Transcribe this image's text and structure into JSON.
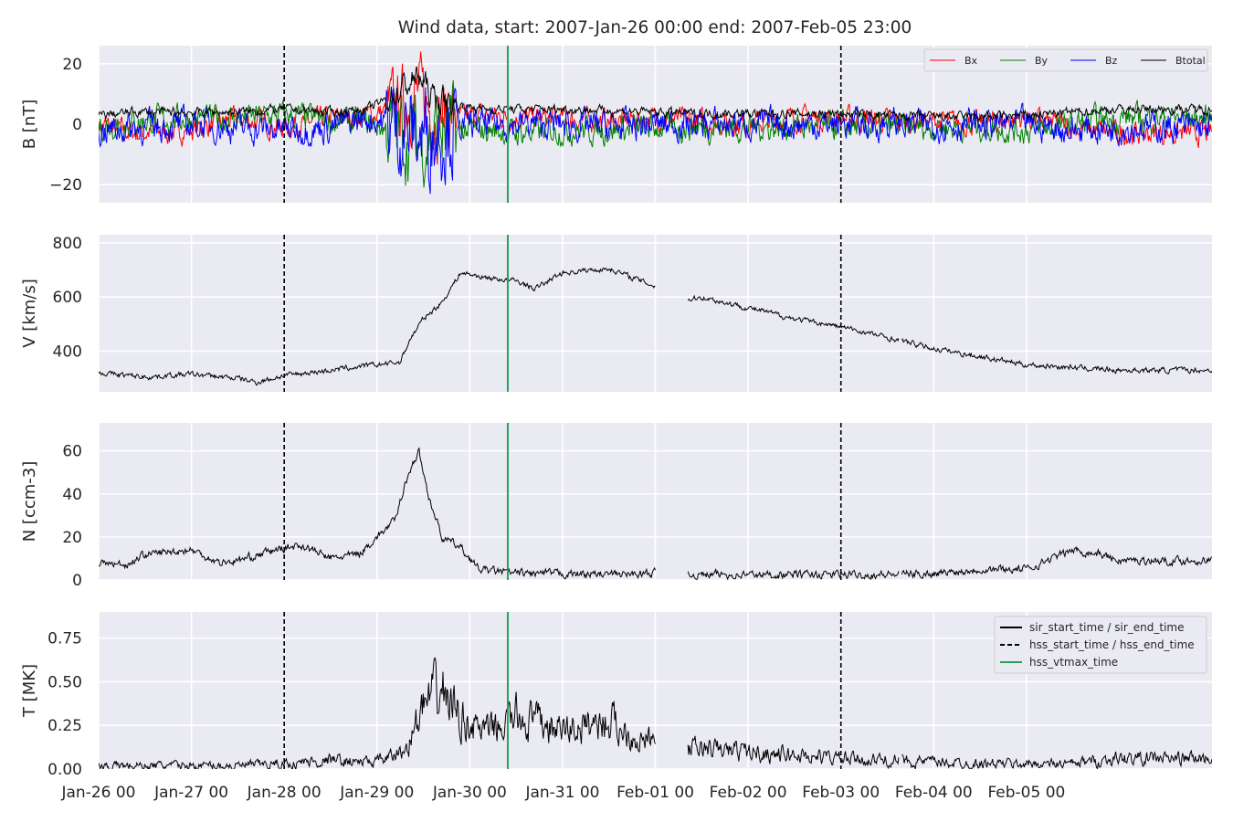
{
  "chart_data": {
    "type": "line",
    "title": "Wind data, start: 2007-Jan-26 00:00  end: 2007-Feb-05 23:00",
    "x_ticks": [
      "Jan-26 00",
      "Jan-27 00",
      "Jan-28 00",
      "Jan-29 00",
      "Jan-30 00",
      "Jan-31 00",
      "Feb-01 00",
      "Feb-02 00",
      "Feb-03 00",
      "Feb-04 00",
      "Feb-05 00"
    ],
    "x_range": [
      "2007-01-26 00:00",
      "2007-02-06 23:59"
    ],
    "events": [
      {
        "label": "hss_start_time / hss_end_time",
        "style": "dashed",
        "color": "#000000",
        "times": [
          "2007-01-28 00:00",
          "2007-02-03 00:00"
        ]
      },
      {
        "label": "hss_vtmax_time",
        "style": "solid",
        "color": "#2ca05a",
        "times": [
          "2007-01-30 09:50"
        ]
      }
    ],
    "event_legend": [
      {
        "label": "sir_start_time / sir_end_time",
        "style": "solid",
        "color": "#000000"
      },
      {
        "label": "hss_start_time / hss_end_time",
        "style": "dashed",
        "color": "#000000"
      },
      {
        "label": "hss_vtmax_time",
        "style": "solid",
        "color": "#2ca05a"
      }
    ],
    "panels": [
      {
        "ylabel": "B [nT]",
        "ylim": [
          -26,
          26
        ],
        "yticks": [
          "20",
          "0",
          "−20"
        ],
        "ytick_values": [
          20,
          0,
          -20
        ],
        "legend_position": "top-right",
        "series": [
          {
            "name": "Bx",
            "color": "#ff0000",
            "days": [
              0,
              0.4,
              1,
              1.5,
              2,
              2.5,
              2.9,
              3.2,
              3.45,
              3.6,
              3.9,
              4.2,
              4.5,
              5,
              5.5,
              6,
              6.5,
              7,
              7.5,
              8,
              8.5,
              9,
              9.5,
              10,
              10.5,
              11
            ],
            "values": [
              0,
              -3,
              -2,
              2,
              -1,
              2,
              3,
              5,
              10,
              4,
              2,
              3,
              2,
              2,
              1,
              2,
              1,
              0,
              2,
              2,
              1,
              1,
              0,
              2,
              -1,
              -3
            ],
            "noise": 3.0
          },
          {
            "name": "By",
            "color": "#008000",
            "days": [
              0,
              0.4,
              1,
              1.5,
              2,
              2.5,
              2.9,
              3.2,
              3.45,
              3.6,
              3.9,
              4.2,
              4.5,
              5,
              5.5,
              6,
              6.5,
              7,
              7.5,
              8,
              8.5,
              9,
              9.5,
              10,
              10.5,
              11
            ],
            "values": [
              -1,
              1,
              2,
              2,
              3,
              1,
              0,
              -2,
              -6,
              -3,
              -2,
              -2,
              -3,
              -2,
              -2,
              -1,
              -1,
              -1,
              -1,
              -1,
              -1,
              -1,
              -1,
              -2,
              0,
              2
            ],
            "noise": 3.5
          },
          {
            "name": "Bz",
            "color": "#0000ff",
            "days": [
              0,
              0.4,
              1,
              1.5,
              2,
              2.5,
              2.9,
              3.2,
              3.45,
              3.6,
              3.9,
              4.2,
              4.5,
              5,
              5.5,
              6,
              6.5,
              7,
              7.5,
              8,
              8.5,
              9,
              9.5,
              10,
              10.5,
              11
            ],
            "values": [
              -2,
              -1,
              0,
              -1,
              -2,
              -1,
              2,
              0,
              -4,
              -2,
              0,
              0,
              0,
              0,
              -1,
              0,
              0,
              0,
              0,
              0,
              0,
              0,
              0,
              0,
              -2,
              -1
            ],
            "noise": 4.0
          },
          {
            "name": "Btotal",
            "color": "#000000",
            "days": [
              0,
              0.4,
              1,
              1.5,
              2,
              2.5,
              2.9,
              3.2,
              3.45,
              3.6,
              3.9,
              4.2,
              4.5,
              5,
              5.5,
              6,
              6.5,
              7,
              7.5,
              8,
              8.5,
              9,
              9.5,
              10,
              10.5,
              11
            ],
            "values": [
              3,
              4,
              4,
              4,
              5,
              4,
              5,
              10,
              16,
              9,
              6,
              5,
              5,
              5,
              4.5,
              4,
              3.5,
              3.5,
              3.5,
              3.5,
              3,
              2.5,
              2.5,
              3,
              4,
              5
            ],
            "noise": 1.2
          }
        ]
      },
      {
        "ylabel": "V [km/s]",
        "ylim": [
          250,
          830
        ],
        "yticks": [
          "800",
          "600",
          "400"
        ],
        "ytick_values": [
          800,
          600,
          400
        ],
        "series": [
          {
            "name": "",
            "color": "#000000",
            "gaps": [
              [
                6.0,
                6.35
              ],
              [
                8.63,
                8.65
              ]
            ],
            "days": [
              0,
              0.5,
              1,
              1.5,
              1.7,
              2,
              2.5,
              3,
              3.25,
              3.35,
              3.5,
              3.7,
              3.9,
              4.2,
              4.5,
              4.7,
              5,
              5.5,
              6.0,
              6.35,
              6.5,
              7,
              7.5,
              8,
              8.5,
              9,
              9.5,
              10,
              10.5,
              11
            ],
            "values": [
              320,
              305,
              315,
              300,
              285,
              310,
              330,
              350,
              360,
              440,
              520,
              580,
              690,
              670,
              660,
              630,
              690,
              705,
              640,
              590,
              600,
              560,
              520,
              490,
              450,
              410,
              380,
              350,
              340,
              330
            ],
            "noise": 8
          }
        ]
      },
      {
        "ylabel": "N [ccm-3]",
        "ylim": [
          0,
          73
        ],
        "yticks": [
          "60",
          "40",
          "20",
          "0"
        ],
        "ytick_values": [
          60,
          40,
          20,
          0
        ],
        "series": [
          {
            "name": "",
            "color": "#000000",
            "gaps": [
              [
                6.0,
                6.35
              ],
              [
                8.63,
                8.65
              ]
            ],
            "days": [
              0,
              0.3,
              0.5,
              1,
              1.3,
              1.5,
              2,
              2.2,
              2.5,
              2.8,
              3.0,
              3.2,
              3.3,
              3.45,
              3.55,
              3.7,
              3.9,
              4.1,
              4.5,
              5,
              5.5,
              6.0,
              6.35,
              7,
              7.5,
              8,
              8.5,
              9,
              9.5,
              10,
              10.5,
              10.8,
              11
            ],
            "values": [
              8,
              7,
              12,
              14,
              8,
              9,
              15,
              16,
              10,
              12,
              20,
              28,
              45,
              60,
              40,
              20,
              15,
              5,
              3,
              3,
              2.5,
              3,
              2.5,
              2.5,
              2.5,
              2.5,
              2.5,
              3,
              5,
              5,
              14,
              12,
              9
            ],
            "noise": 1.5
          }
        ]
      },
      {
        "ylabel": "T [MK]",
        "ylim": [
          0,
          0.9
        ],
        "yticks": [
          "0.75",
          "0.50",
          "0.25",
          "0.00"
        ],
        "ytick_values": [
          0.75,
          0.5,
          0.25,
          0.0
        ],
        "legend_position": "top-right",
        "series": [
          {
            "name": "",
            "color": "#000000",
            "gaps": [
              [
                6.0,
                6.35
              ],
              [
                8.63,
                8.65
              ]
            ],
            "days": [
              0,
              0.5,
              1,
              1.5,
              2,
              2.5,
              3,
              3.3,
              3.5,
              3.7,
              3.9,
              4.2,
              4.5,
              5,
              5.5,
              5.8,
              6.0,
              6.35,
              7,
              7.5,
              8,
              8.5,
              9,
              9.5,
              10,
              10.5,
              11
            ],
            "values": [
              0.02,
              0.02,
              0.02,
              0.02,
              0.03,
              0.05,
              0.04,
              0.1,
              0.35,
              0.45,
              0.3,
              0.2,
              0.3,
              0.22,
              0.28,
              0.18,
              0.15,
              0.12,
              0.1,
              0.08,
              0.06,
              0.05,
              0.04,
              0.03,
              0.03,
              0.03,
              0.06
            ],
            "noise": 0.015,
            "relnoise": 0.28
          }
        ]
      }
    ]
  }
}
